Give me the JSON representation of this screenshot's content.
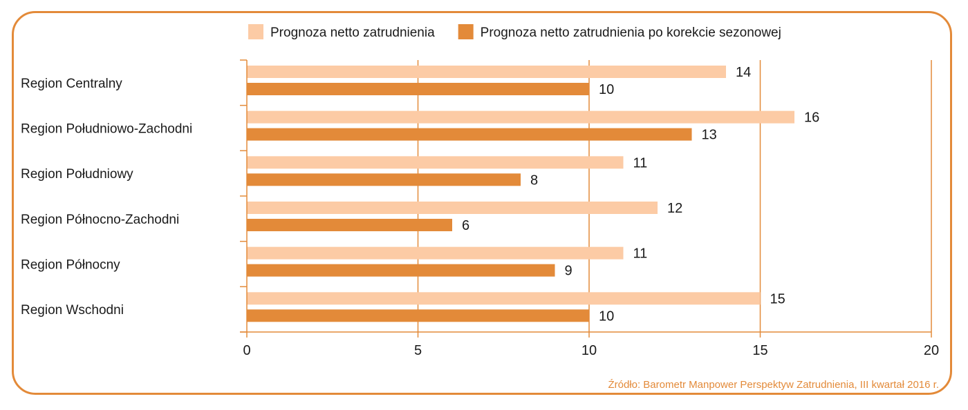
{
  "chart_data": {
    "type": "bar",
    "orientation": "horizontal",
    "categories": [
      "Region Centralny",
      "Region Południowo-Zachodni",
      "Region Południowy",
      "Region Północno-Zachodni",
      "Region Północny",
      "Region Wschodni"
    ],
    "series": [
      {
        "name": "Prognoza netto zatrudnienia",
        "color": "#fccba5",
        "values": [
          14,
          16,
          11,
          12,
          11,
          15
        ]
      },
      {
        "name": "Prognoza netto zatrudnienia po korekcie sezonowej",
        "color": "#e38a39",
        "values": [
          10,
          13,
          8,
          6,
          9,
          10
        ]
      }
    ],
    "xlim": [
      0,
      20
    ],
    "xticks": [
      0,
      5,
      10,
      15,
      20
    ],
    "grid": true,
    "legend_position": "top",
    "axis_color": "#e38a39",
    "source": "Źródło: Barometr Manpower Perspektyw Zatrudnienia, III kwartał 2016 r."
  }
}
